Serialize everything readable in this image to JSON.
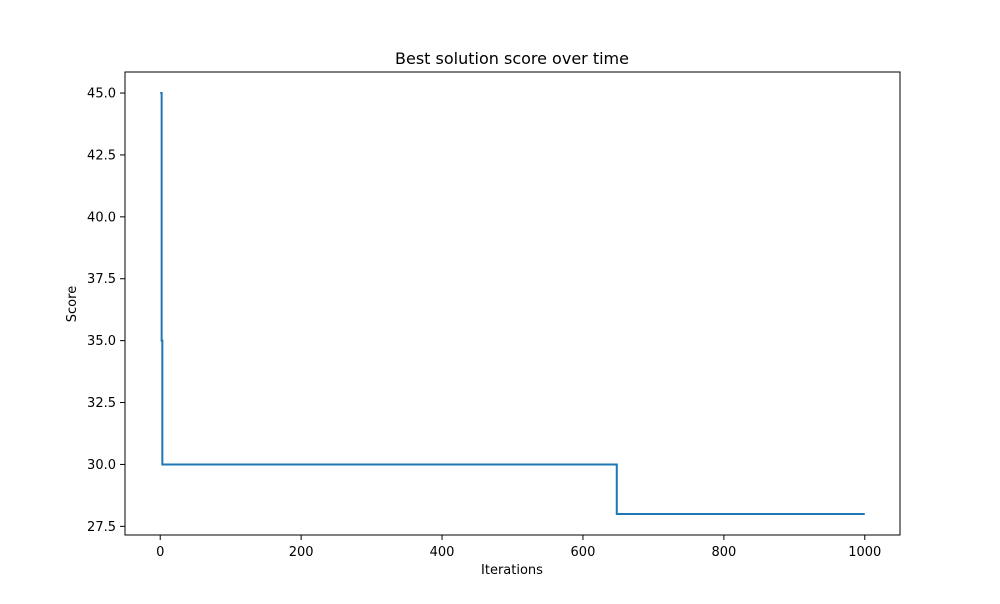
{
  "chart_data": {
    "type": "line",
    "title": "Best solution score over time",
    "xlabel": "Iterations",
    "ylabel": "Score",
    "xlim": [
      -50,
      1050
    ],
    "ylim": [
      27.15,
      45.85
    ],
    "xticks": [
      0,
      200,
      400,
      600,
      800,
      1000
    ],
    "yticks": [
      27.5,
      30.0,
      32.5,
      35.0,
      37.5,
      40.0,
      42.5,
      45.0
    ],
    "xtick_labels": [
      "0",
      "200",
      "400",
      "600",
      "800",
      "1000"
    ],
    "ytick_labels": [
      "27.5",
      "30.0",
      "32.5",
      "35.0",
      "37.5",
      "40.0",
      "42.5",
      "45.0"
    ],
    "grid": false,
    "series": [
      {
        "color": "#1f77b4",
        "step": true,
        "x": [
          0,
          2,
          2,
          3,
          3,
          4,
          4,
          648,
          648,
          1000
        ],
        "y": [
          45,
          45,
          35,
          35,
          30,
          30,
          30,
          30,
          28,
          28
        ]
      }
    ]
  }
}
